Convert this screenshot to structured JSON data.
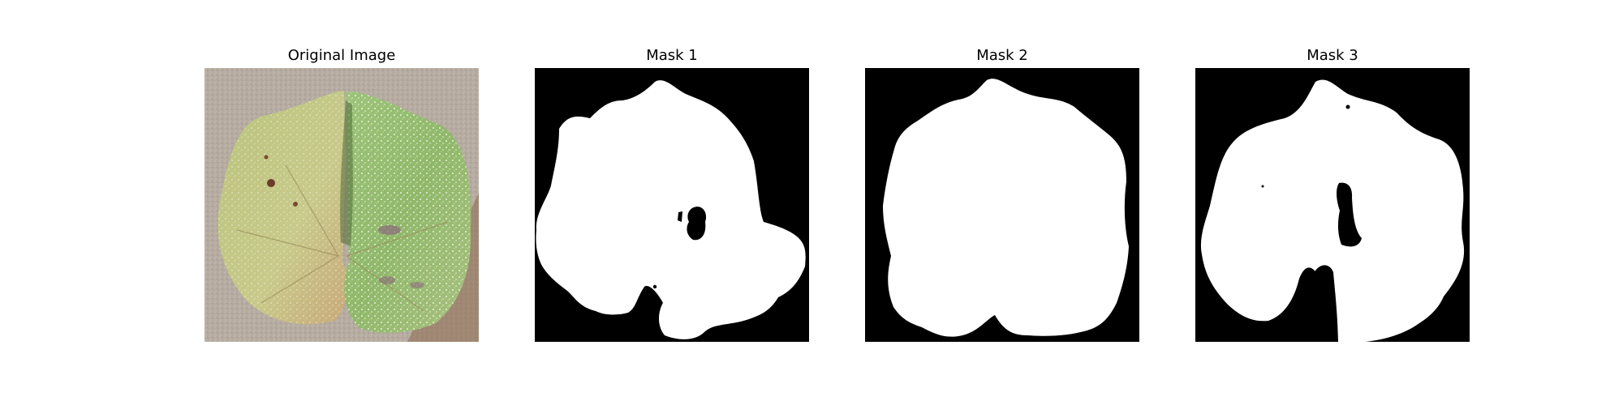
{
  "panels": [
    {
      "title": "Original Image",
      "content": "leaf-photo"
    },
    {
      "title": "Mask 1",
      "content": "binary-mask"
    },
    {
      "title": "Mask 2",
      "content": "binary-mask"
    },
    {
      "title": "Mask 3",
      "content": "binary-mask"
    }
  ],
  "colors": {
    "background": "#ffffff",
    "mask_background": "#000000",
    "mask_foreground": "#ffffff",
    "photo_background": "#b3a99e",
    "leaf_left": "#b8c27a",
    "leaf_right": "#8fb86a"
  }
}
